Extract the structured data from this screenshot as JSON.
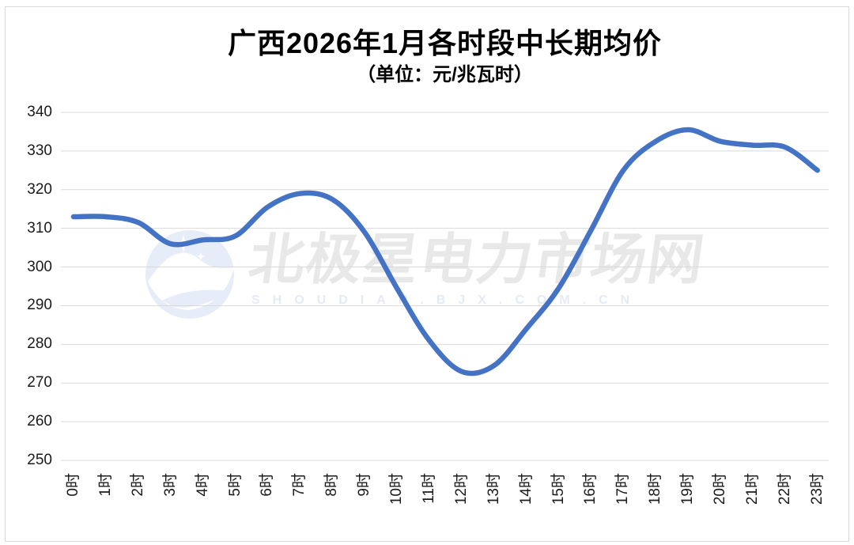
{
  "title": "广西2026年1月各时段中长期均价",
  "subtitle": "（单位：元/兆瓦时）",
  "watermark": {
    "brand": "北极星电力市场网",
    "domain": "SHOUDIAN.BJX.COM.CN",
    "logo": "polar-star-bird-logo"
  },
  "colors": {
    "line": "#4472C4",
    "grid": "#D9D9D9",
    "axis_text": "#1A1A1A",
    "watermark_text": "#E8E8E8",
    "watermark_sub": "#E4EBF5",
    "watermark_circle": "#E6EDF8"
  },
  "chart_data": {
    "type": "line",
    "smooth": true,
    "title": "广西2026年1月各时段中长期均价",
    "unit": "元/兆瓦时",
    "xlabel": "",
    "ylabel": "",
    "ylim": [
      250,
      340
    ],
    "ytick_step": 10,
    "y_ticks": [
      "340",
      "330",
      "320",
      "310",
      "300",
      "290",
      "280",
      "270",
      "260",
      "250"
    ],
    "grid": true,
    "legend": "none",
    "categories": [
      "0时",
      "1时",
      "2时",
      "3时",
      "4时",
      "5时",
      "6时",
      "7时",
      "8时",
      "9时",
      "10时",
      "11时",
      "12时",
      "13时",
      "14时",
      "15时",
      "16时",
      "17时",
      "18时",
      "19时",
      "20时",
      "21时",
      "22时",
      "23时"
    ],
    "series": [
      {
        "name": "中长期均价",
        "values": [
          313,
          313,
          311.5,
          306,
          307,
          308,
          315.5,
          319,
          317.5,
          309,
          294.5,
          281,
          273,
          274.5,
          284,
          294.5,
          309.5,
          325,
          332.5,
          335.5,
          332.5,
          331.5,
          331,
          325
        ]
      }
    ]
  }
}
